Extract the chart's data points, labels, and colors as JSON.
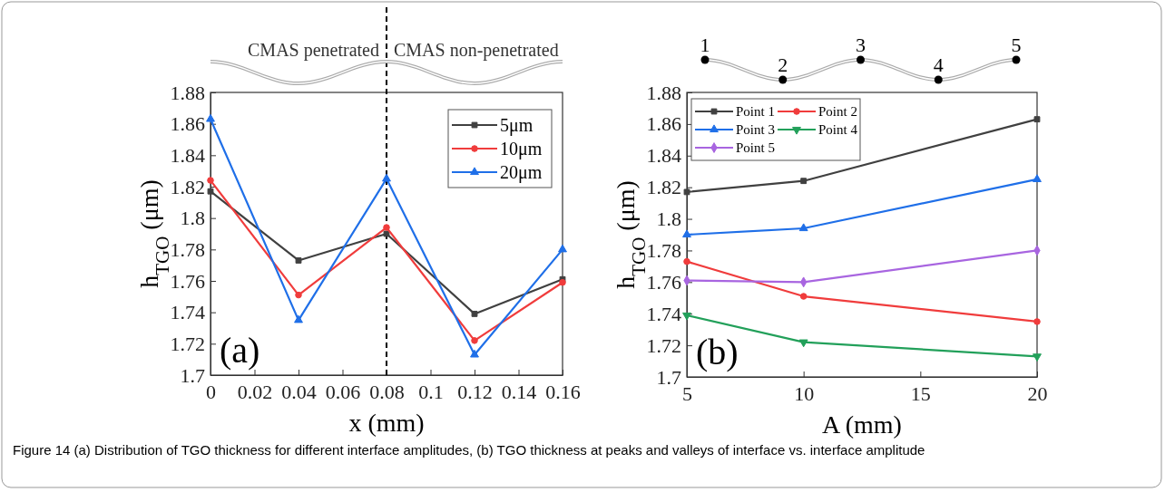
{
  "chart_data": [
    {
      "type": "line",
      "xlabel": "x (mm)",
      "ylabel": "h$_{TGO}$ (μm)",
      "x": [
        0,
        0.04,
        0.08,
        0.12,
        0.16
      ],
      "series": [
        {
          "name": "5μm",
          "color": "#404040",
          "marker": "square",
          "values": [
            1.817,
            1.773,
            1.79,
            1.739,
            1.761
          ]
        },
        {
          "name": "10μm",
          "color": "#f03c3c",
          "marker": "circle",
          "values": [
            1.824,
            1.751,
            1.794,
            1.722,
            1.759
          ]
        },
        {
          "name": "20μm",
          "color": "#1f6fe8",
          "marker": "triangle",
          "values": [
            1.863,
            1.735,
            1.825,
            1.713,
            1.78
          ]
        }
      ],
      "xlim": [
        0,
        0.16
      ],
      "xticks": [
        0,
        0.02,
        0.04,
        0.06,
        0.08,
        0.1,
        0.12,
        0.14,
        0.16
      ],
      "ylim": [
        1.7,
        1.88
      ],
      "yticks": [
        1.7,
        1.72,
        1.74,
        1.76,
        1.78,
        1.8,
        1.82,
        1.84,
        1.86,
        1.88
      ],
      "ref_lines": [
        {
          "axis": "x",
          "value": 0.08,
          "color": "#000000",
          "line_style": "dashed"
        }
      ],
      "legend": "top right",
      "grid": false,
      "line_style": "solid",
      "annotations": [
        "(a)",
        "CMAS penetrated",
        "CMAS non-penetrated",
        "Figure 14  (a) Distribution of TGO thickness for different interface amplitudes, (b) TGO thickness at peaks and valleys of interface vs. interface amplitude"
      ]
    },
    {
      "type": "line",
      "xlabel": "A (mm)",
      "ylabel": "h$_{TGO}$ (μm)",
      "x": [
        5,
        10,
        20
      ],
      "series": [
        {
          "name": "Point 1",
          "color": "#404040",
          "marker": "square",
          "values": [
            1.817,
            1.824,
            1.863
          ]
        },
        {
          "name": "Point 2",
          "color": "#f03c3c",
          "marker": "circle",
          "values": [
            1.773,
            1.751,
            1.735
          ]
        },
        {
          "name": "Point 3",
          "color": "#1f6fe8",
          "marker": "triangle",
          "values": [
            1.79,
            1.794,
            1.825
          ]
        },
        {
          "name": "Point 4",
          "color": "#22a05a",
          "marker": "triangle-down",
          "values": [
            1.739,
            1.722,
            1.713
          ]
        },
        {
          "name": "Point 5",
          "color": "#a865e0",
          "marker": "diamond",
          "values": [
            1.761,
            1.76,
            1.78
          ]
        }
      ],
      "xlim": [
        5,
        20
      ],
      "xticks": [
        5,
        10,
        15,
        20
      ],
      "ylim": [
        1.7,
        1.88
      ],
      "yticks": [
        1.7,
        1.72,
        1.74,
        1.76,
        1.78,
        1.8,
        1.82,
        1.84,
        1.86,
        1.88
      ],
      "legend": "top left",
      "grid": false,
      "line_style": "solid",
      "annotations": [
        "(b)",
        "1",
        "2",
        "3",
        "4",
        "5"
      ]
    }
  ]
}
